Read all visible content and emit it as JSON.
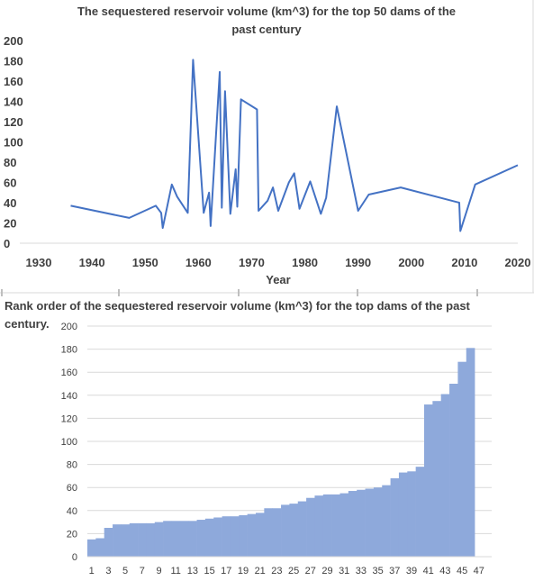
{
  "chart_data": [
    {
      "type": "line",
      "title_lines": [
        "The sequestered reservoir volume (km^3) for the top 50 dams of the",
        "past century"
      ],
      "xlabel": "Year",
      "ylabel": "",
      "xlim": [
        1930,
        2020
      ],
      "ylim": [
        0,
        200
      ],
      "xticks": [
        1930,
        1940,
        1950,
        1960,
        1970,
        1980,
        1990,
        2000,
        2010,
        2020
      ],
      "yticks": [
        0,
        20,
        40,
        60,
        80,
        100,
        120,
        140,
        160,
        180,
        200
      ],
      "grid": "none",
      "legend": "none",
      "color": "#4472C4",
      "x": [
        1936,
        1947,
        1952,
        1953,
        1953.3,
        1955,
        1956,
        1958,
        1959,
        1961,
        1962,
        1962.3,
        1964,
        1964.4,
        1965,
        1966,
        1967,
        1967.3,
        1968,
        1971,
        1971.3,
        1973,
        1974,
        1975,
        1977,
        1978,
        1979,
        1981,
        1983,
        1984,
        1986,
        1990,
        1992,
        1998,
        2009,
        2009.2,
        2012,
        2020
      ],
      "y": [
        37,
        25,
        37,
        30,
        15,
        58,
        46,
        30,
        181,
        30,
        50,
        17,
        169,
        35,
        150,
        29,
        73,
        36,
        142,
        132,
        32,
        42,
        55,
        32,
        60,
        69,
        34,
        61,
        29,
        45,
        135,
        32,
        48,
        55,
        40,
        12,
        58,
        77
      ]
    },
    {
      "type": "bar",
      "title_lines": [
        "Rank order of the sequestered reservoir volume (km^3) for the top dams of the past",
        "century."
      ],
      "xlabel": "",
      "ylabel": "",
      "ylim": [
        0,
        200
      ],
      "yticks": [
        0,
        20,
        40,
        60,
        80,
        100,
        120,
        140,
        160,
        180,
        200
      ],
      "grid": "horizontal",
      "legend": "none",
      "color": "#8EA9DB",
      "categories": [
        1,
        2,
        3,
        4,
        5,
        6,
        7,
        8,
        9,
        10,
        11,
        12,
        13,
        14,
        15,
        16,
        17,
        18,
        19,
        20,
        21,
        22,
        23,
        24,
        25,
        26,
        27,
        28,
        29,
        30,
        31,
        32,
        33,
        34,
        35,
        36,
        37,
        38,
        39,
        40,
        41,
        42,
        43,
        44,
        45,
        46
      ],
      "xtick_labels": [
        "1",
        "3",
        "5",
        "7",
        "9",
        "11",
        "13",
        "15",
        "17",
        "19",
        "21",
        "23",
        "25",
        "27",
        "29",
        "31",
        "33",
        "35",
        "37",
        "39",
        "41",
        "43",
        "45",
        "47"
      ],
      "values": [
        15,
        16,
        25,
        28,
        28,
        29,
        29,
        29,
        30,
        31,
        31,
        31,
        31,
        32,
        33,
        34,
        35,
        35,
        36,
        37,
        38,
        42,
        42,
        45,
        46,
        48,
        51,
        53,
        54,
        54,
        55,
        57,
        58,
        59,
        60,
        62,
        68,
        73,
        74,
        78,
        132,
        135,
        141,
        150,
        169,
        181
      ]
    }
  ]
}
